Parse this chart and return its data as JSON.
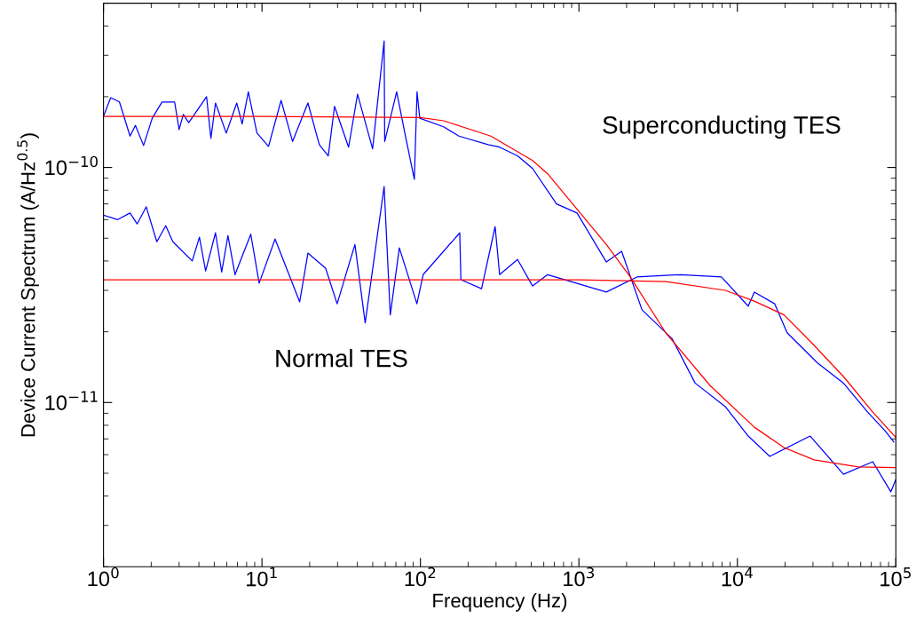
{
  "chart_data": {
    "type": "line",
    "xlabel": "Frequency (Hz)",
    "ylabel": "Device Current Spectrum (A/Hz$^{0.5}$)",
    "log": "xy",
    "grid": false,
    "marker": "none",
    "line_style": "solid",
    "xlim": [
      1,
      100000
    ],
    "ylim": [
      2e-12,
      5e-10
    ],
    "xticks": [
      {
        "value": 1,
        "label": "10$^{0}$"
      },
      {
        "value": 10,
        "label": "10$^{1}$"
      },
      {
        "value": 100,
        "label": "10$^{2}$"
      },
      {
        "value": 1000,
        "label": "10$^{3}$"
      },
      {
        "value": 10000,
        "label": "10$^{4}$"
      },
      {
        "value": 100000,
        "label": "10$^{5}$"
      }
    ],
    "yticks": [
      {
        "value": 1e-11,
        "label": "10$^{−11}$"
      },
      {
        "value": 1e-10,
        "label": "10$^{−10}$"
      }
    ],
    "annotations": [
      "Superconducting TES",
      "Normal TES"
    ],
    "series": [
      {
        "color": "#0000ff",
        "x": [
          1,
          1.11,
          1.26,
          1.47,
          1.59,
          1.79,
          2.03,
          2.34,
          2.81,
          3.0,
          3.19,
          3.45,
          4.47,
          4.76,
          5.09,
          5.95,
          6.93,
          7.5,
          8.2,
          9.3,
          11.0,
          13.2,
          15.6,
          19.5,
          23.0,
          26.2,
          28.7,
          35.2,
          40.1,
          49.9,
          59,
          59.5,
          70.8,
          80.4,
          91.5,
          95.2,
          99,
          140,
          175,
          267,
          316,
          410,
          510,
          722,
          973,
          1490,
          1860,
          2500,
          3870,
          5410,
          8390,
          11700,
          16000,
          28800,
          46700,
          71500,
          93000,
          100000
        ],
        "values": [
          1.65e-10,
          1.98e-10,
          1.9e-10,
          1.36e-10,
          1.51e-10,
          1.24e-10,
          1.62e-10,
          1.9e-10,
          1.9e-10,
          1.45e-10,
          1.68e-10,
          1.55e-10,
          2e-10,
          1.33e-10,
          1.88e-10,
          1.4e-10,
          1.88e-10,
          1.53e-10,
          2.1e-10,
          1.4e-10,
          1.23e-10,
          1.93e-10,
          1.29e-10,
          1.88e-10,
          1.25e-10,
          1.12e-10,
          1.82e-10,
          1.22e-10,
          2.05e-10,
          1.2e-10,
          3.45e-10,
          1.29e-10,
          2.1e-10,
          1.36e-10,
          8.9e-11,
          2.1e-10,
          1.62e-10,
          1.49e-10,
          1.36e-10,
          1.25e-10,
          1.22e-10,
          1.12e-10,
          9.9e-11,
          7e-11,
          6.4e-11,
          3.96e-11,
          4.4e-11,
          2.48e-11,
          1.87e-11,
          1.21e-11,
          9.6e-12,
          7.2e-12,
          5.9e-12,
          7.2e-12,
          4.95e-12,
          5.6e-12,
          4.17e-12,
          4.7e-12
        ]
      },
      {
        "color": "#0000ff",
        "x": [
          1,
          1.23,
          1.47,
          1.63,
          1.86,
          2.17,
          2.47,
          2.74,
          3.63,
          4.03,
          4.41,
          5.09,
          5.57,
          6.1,
          6.76,
          8.5,
          9.6,
          12.1,
          17.3,
          19.5,
          25.2,
          29.8,
          38.6,
          44.8,
          59,
          64.5,
          73.6,
          95,
          104,
          177,
          180,
          243,
          296,
          316,
          410,
          510,
          635,
          1490,
          2320,
          4390,
          7930,
          11700,
          12800,
          17200,
          20600,
          31800,
          46700,
          66400,
          85200,
          97000
        ],
        "values": [
          6.27e-11,
          6e-11,
          6.4e-11,
          5.75e-11,
          6.8e-11,
          4.83e-11,
          5.65e-11,
          4.83e-11,
          4e-11,
          5.05e-11,
          3.63e-11,
          5.27e-11,
          3.59e-11,
          5.13e-11,
          3.5e-11,
          5.2e-11,
          3.22e-11,
          4.96e-11,
          2.68e-11,
          4.32e-11,
          3.73e-11,
          2.63e-11,
          4.7e-11,
          2.18e-11,
          8.3e-11,
          2.36e-11,
          4.55e-11,
          2.63e-11,
          3.5e-11,
          5.27e-11,
          3.33e-11,
          3.05e-11,
          5.6e-11,
          3.5e-11,
          4.06e-11,
          3.13e-11,
          3.5e-11,
          2.95e-11,
          3.42e-11,
          3.5e-11,
          3.42e-11,
          2.57e-11,
          2.95e-11,
          2.63e-11,
          1.98e-11,
          1.48e-11,
          1.21e-11,
          9.1e-12,
          7.6e-12,
          6.8e-12
        ]
      },
      {
        "color": "#ff0000",
        "x": [
          1,
          10,
          100,
          140,
          278,
          510,
          635,
          1000,
          1490,
          2110,
          3530,
          6730,
          12800,
          19700,
          30500,
          58200,
          100000
        ],
        "values": [
          1.65e-10,
          1.65e-10,
          1.63e-10,
          1.58e-10,
          1.36e-10,
          1.07e-10,
          9.4e-11,
          6.5e-11,
          4.7e-11,
          3.42e-11,
          1.98e-11,
          1.18e-11,
          7.85e-12,
          6.43e-12,
          5.7e-12,
          5.32e-12,
          5.28e-12
        ]
      },
      {
        "color": "#ff0000",
        "x": [
          1,
          10,
          100,
          1000,
          3530,
          8390,
          12800,
          19700,
          30500,
          46700,
          71500,
          100000
        ],
        "values": [
          3.33e-11,
          3.33e-11,
          3.33e-11,
          3.33e-11,
          3.27e-11,
          3e-11,
          2.7e-11,
          2.36e-11,
          1.75e-11,
          1.29e-11,
          9.1e-12,
          7.1e-12
        ]
      }
    ]
  }
}
